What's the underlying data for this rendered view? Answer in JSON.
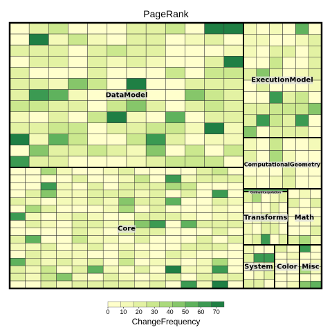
{
  "chart_data": {
    "type": "treemap",
    "title": "PageRank",
    "color_variable": "ChangeFrequency",
    "color_scale": {
      "ticks": [
        0,
        10,
        20,
        30,
        40,
        50,
        60,
        70
      ],
      "range": [
        0,
        75
      ],
      "colors": [
        "#ffffcc",
        "#f4fab8",
        "#e3f2a3",
        "#cbe88e",
        "#abda7c",
        "#86c66a",
        "#5fb25d",
        "#3b9a52",
        "#1f7f44"
      ]
    },
    "groups": [
      {
        "name": "DataModel",
        "cells": 230,
        "mean_change_frequency": 22
      },
      {
        "name": "Core",
        "cells": 260,
        "mean_change_frequency": 16
      },
      {
        "name": "ExecutionModel",
        "cells": 90,
        "mean_change_frequency": 20
      },
      {
        "name": "ComputationalGeometry",
        "cells": 32,
        "mean_change_frequency": 10
      },
      {
        "name": "OnlineInterpolation",
        "cells": 1,
        "mean_change_frequency": 5
      },
      {
        "name": "Transforms",
        "cells": 24,
        "mean_change_frequency": 13
      },
      {
        "name": "Math",
        "cells": 18,
        "mean_change_frequency": 12
      },
      {
        "name": "System",
        "cells": 14,
        "mean_change_frequency": 14
      },
      {
        "name": "Color",
        "cells": 14,
        "mean_change_frequency": 8
      },
      {
        "name": "Misc",
        "cells": 14,
        "mean_change_frequency": 8
      }
    ]
  }
}
